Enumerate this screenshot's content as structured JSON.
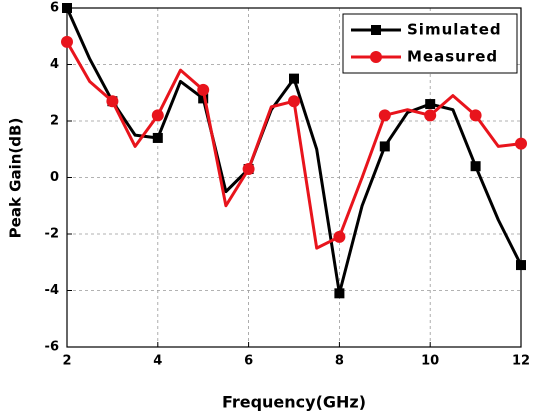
{
  "chart_data": {
    "type": "line",
    "xlabel": "Frequency(GHz)",
    "ylabel": "Peak Gain(dB)",
    "x": [
      2,
      2.5,
      3,
      3.5,
      4,
      4.5,
      5,
      5.5,
      6,
      6.5,
      7,
      7.5,
      8,
      8.5,
      9,
      9.5,
      10,
      10.5,
      11,
      11.5,
      12
    ],
    "series": [
      {
        "name": "Simulated",
        "color": "#000000",
        "marker": "square",
        "values": [
          6.0,
          4.2,
          2.7,
          1.5,
          1.4,
          3.4,
          2.8,
          -0.5,
          0.3,
          2.4,
          3.5,
          1.0,
          -4.1,
          -1.0,
          1.1,
          2.3,
          2.6,
          2.4,
          0.4,
          -1.5,
          -3.1
        ]
      },
      {
        "name": "Measured",
        "color": "#e8141c",
        "marker": "circle",
        "values": [
          4.8,
          3.4,
          2.7,
          1.1,
          2.2,
          3.8,
          3.1,
          -1.0,
          0.3,
          2.5,
          2.7,
          -2.5,
          -2.1,
          0.0,
          2.2,
          2.4,
          2.2,
          2.9,
          2.2,
          1.1,
          1.2
        ]
      }
    ],
    "markevery": 2,
    "xlim": [
      2,
      12
    ],
    "xticks": [
      2,
      4,
      6,
      8,
      10,
      12
    ],
    "ylim": [
      -6,
      6
    ],
    "yticks": [
      -6,
      -4,
      -2,
      0,
      2,
      4,
      6
    ],
    "grid": true,
    "legend": "upper right"
  }
}
